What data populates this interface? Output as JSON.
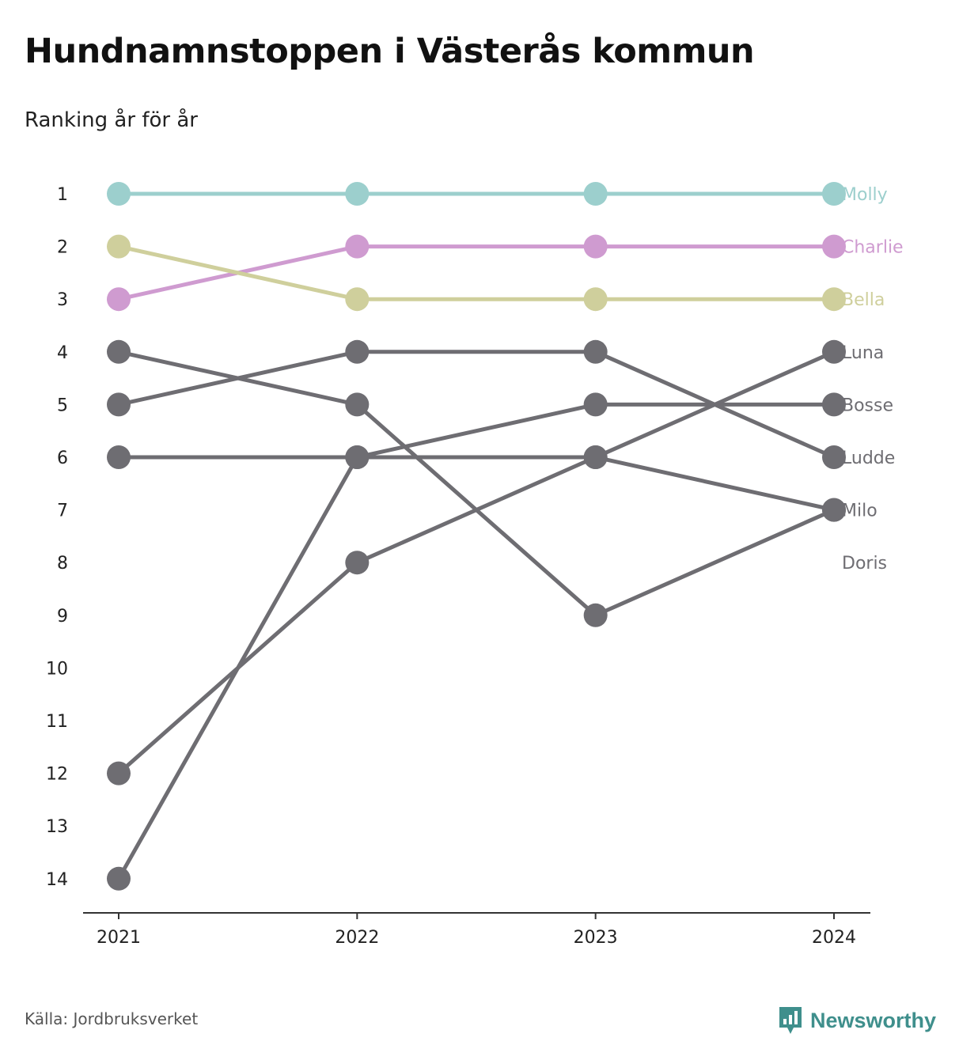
{
  "title": "Hundnamnstoppen i Västerås kommun",
  "subtitle": "Ranking år för år",
  "source": "Källa: Jordbruksverket",
  "brand": {
    "name": "Newsworthy",
    "color": "#3f8f8c",
    "icon": "bar-chart-speech-icon"
  },
  "chart_data": {
    "type": "line",
    "chart_subtype": "bump",
    "x": [
      "2021",
      "2022",
      "2023",
      "2024"
    ],
    "y_ticks": [
      1,
      2,
      3,
      4,
      5,
      6,
      7,
      8,
      9,
      10,
      11,
      12,
      13,
      14
    ],
    "ylim": [
      1,
      14
    ],
    "y_inverted": true,
    "grid": false,
    "legend": "direct-labels-right",
    "series": [
      {
        "name": "Molly",
        "values": [
          1,
          1,
          1,
          1
        ],
        "color": "#9ccfcd"
      },
      {
        "name": "Charlie",
        "values": [
          3,
          2,
          2,
          2
        ],
        "color": "#cf9bd0"
      },
      {
        "name": "Bella",
        "values": [
          2,
          3,
          3,
          3
        ],
        "color": "#cfcf9c"
      },
      {
        "name": "Luna",
        "values": [
          14,
          6,
          6,
          4
        ],
        "color": "#6e6d72"
      },
      {
        "name": "Bosse",
        "values": [
          6,
          6,
          5,
          5
        ],
        "color": "#6e6d72"
      },
      {
        "name": "Ludde",
        "values": [
          5,
          4,
          4,
          6
        ],
        "color": "#6e6d72"
      },
      {
        "name": "Milo",
        "values": [
          4,
          5,
          9,
          7
        ],
        "color": "#6e6d72"
      },
      {
        "name": "Doris",
        "values": [
          12,
          8,
          6,
          7
        ],
        "color": "#6e6d72"
      }
    ],
    "label_color_default": "#6e6d72"
  }
}
